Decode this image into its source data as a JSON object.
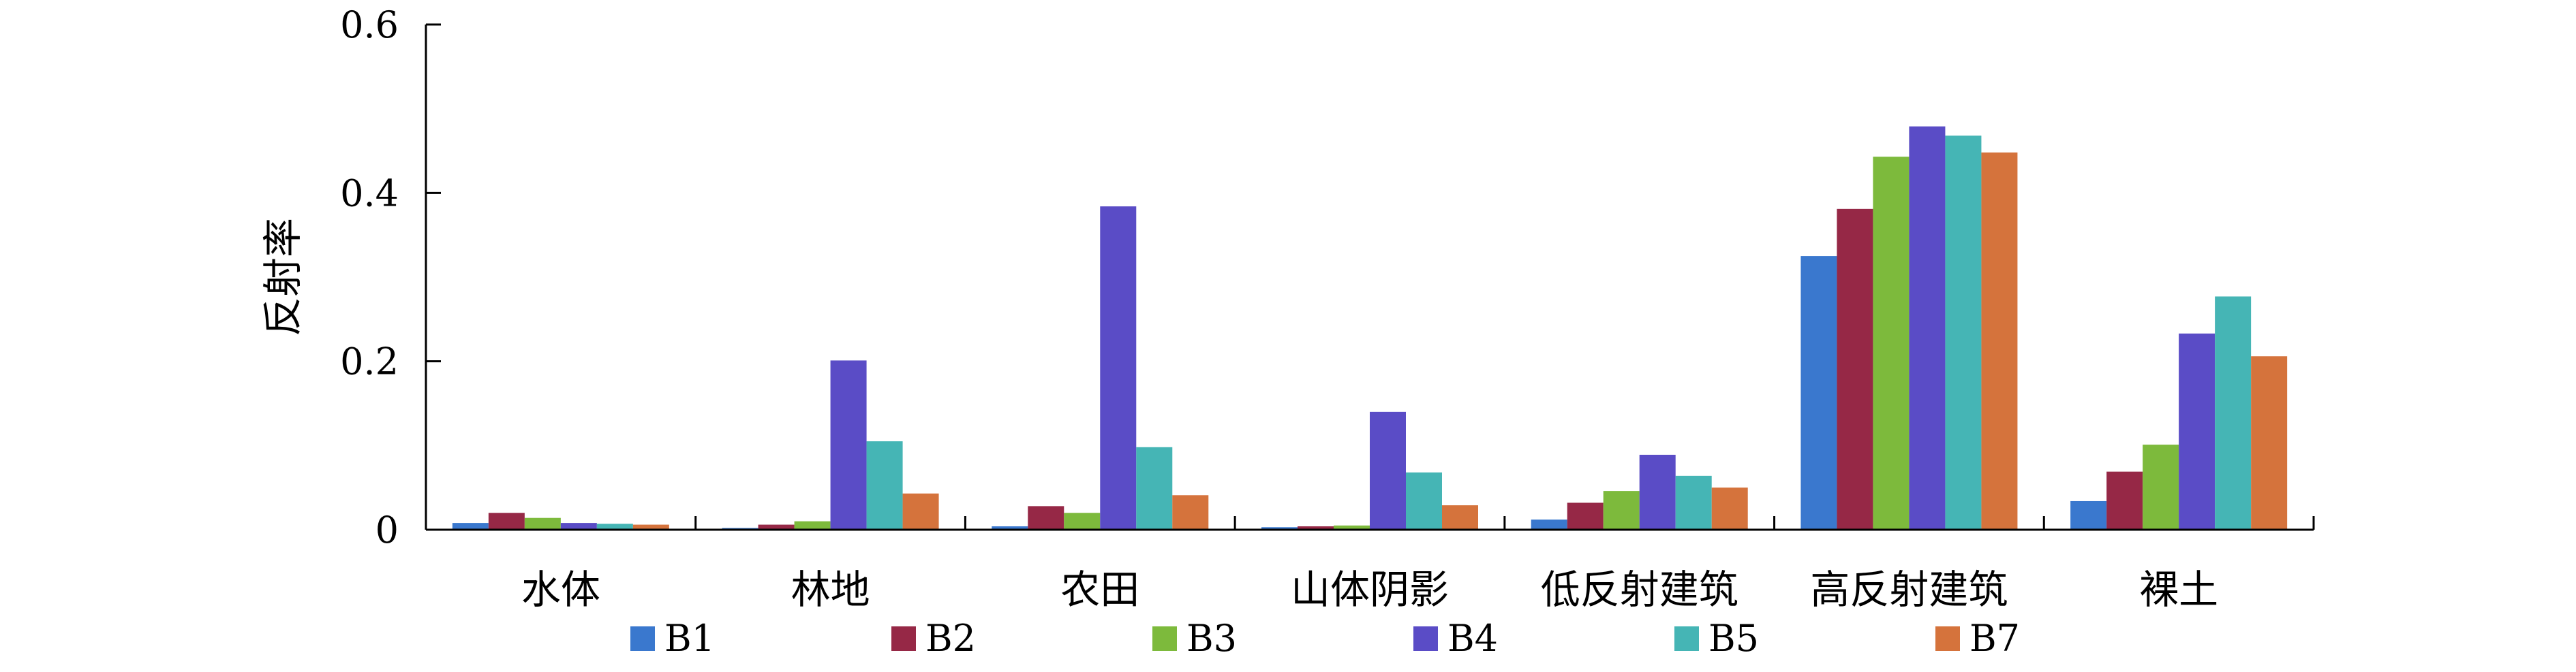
{
  "chart_data": {
    "type": "bar",
    "title": "",
    "xlabel": "",
    "ylabel": "反射率",
    "ylim": [
      0,
      0.6
    ],
    "yticks": [
      0,
      0.2,
      0.4,
      0.6
    ],
    "ytick_labels": [
      "0",
      "0.2",
      "0.4",
      "0.6"
    ],
    "grid": false,
    "legend_position": "bottom",
    "categories": [
      "水体",
      "林地",
      "农田",
      "山体阴影",
      "低反射建筑",
      "高反射建筑",
      "裸土"
    ],
    "series": [
      {
        "name": "B1",
        "color": "#3A78CE",
        "values": [
          0.008,
          0.002,
          0.004,
          0.003,
          0.012,
          0.325,
          0.034
        ]
      },
      {
        "name": "B2",
        "color": "#962846",
        "values": [
          0.02,
          0.006,
          0.028,
          0.004,
          0.032,
          0.381,
          0.069
        ]
      },
      {
        "name": "B3",
        "color": "#7DBA3C",
        "values": [
          0.014,
          0.01,
          0.02,
          0.005,
          0.046,
          0.443,
          0.101
        ]
      },
      {
        "name": "B4",
        "color": "#5A4CC6",
        "values": [
          0.008,
          0.201,
          0.384,
          0.14,
          0.089,
          0.479,
          0.233
        ]
      },
      {
        "name": "B5",
        "color": "#45B5B5",
        "values": [
          0.007,
          0.105,
          0.098,
          0.068,
          0.064,
          0.468,
          0.277
        ]
      },
      {
        "name": "B7",
        "color": "#D5733C",
        "values": [
          0.006,
          0.043,
          0.041,
          0.029,
          0.05,
          0.448,
          0.206
        ]
      }
    ]
  }
}
